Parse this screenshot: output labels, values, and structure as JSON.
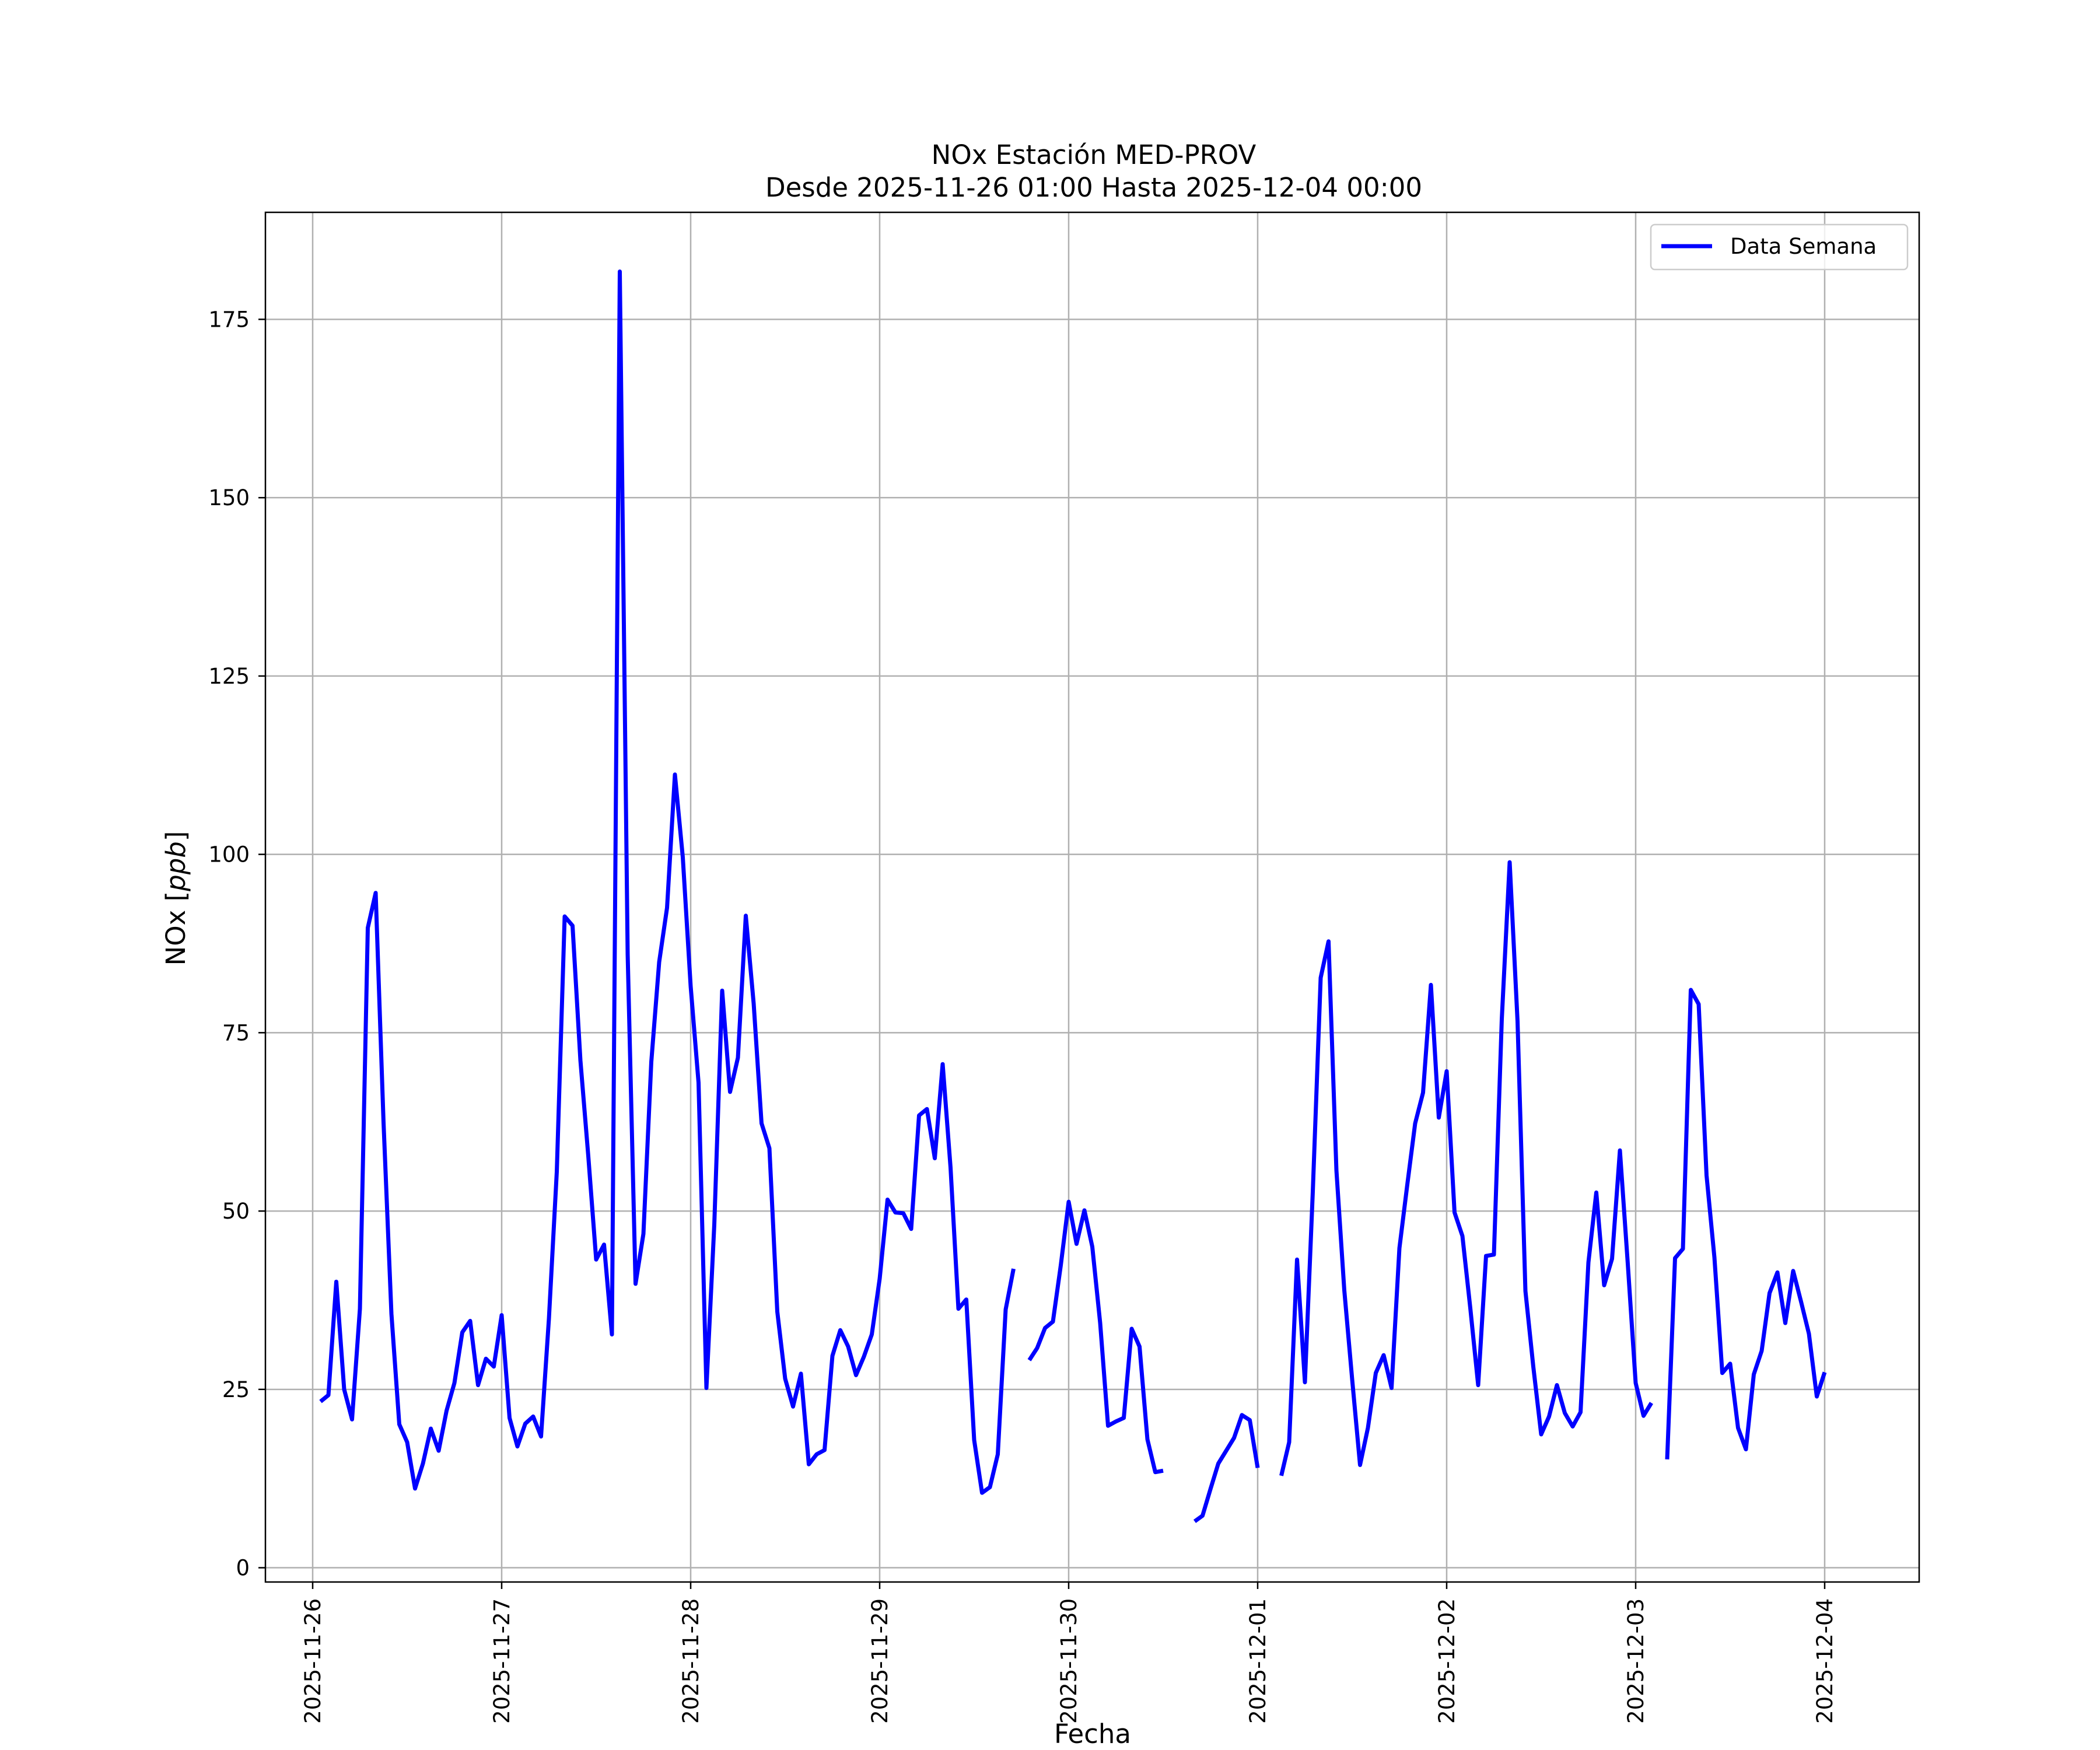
{
  "chart_data": {
    "type": "line",
    "title": "NOx Estación MED-PROV",
    "subtitle": "Desde 2025-11-26 01:00 Hasta 2025-12-04 00:00",
    "xlabel": "Fecha",
    "ylabel_text": "NOx [",
    "ylabel_unit": "ppb",
    "ylabel_close": "]",
    "ylim": [
      -2,
      190
    ],
    "xlim": [
      "2025-11-25T18:00",
      "2025-12-04T12:00"
    ],
    "x_ticks": [
      "2025-11-26",
      "2025-11-27",
      "2025-11-28",
      "2025-11-29",
      "2025-11-30",
      "2025-12-01",
      "2025-12-02",
      "2025-12-03",
      "2025-12-04"
    ],
    "y_ticks": [
      0,
      25,
      50,
      75,
      100,
      125,
      150,
      175
    ],
    "grid": true,
    "legend_position": "top-right",
    "line_color": "#0000ff",
    "series": [
      {
        "name": "Data Semana",
        "color": "#0000ff",
        "start": "2025-11-26T01:00",
        "step_hours": 1,
        "values": [
          23.3,
          24.2,
          40.1,
          25.0,
          20.8,
          36.3,
          89.7,
          94.6,
          62.4,
          35.6,
          20.1,
          17.6,
          11.1,
          14.6,
          19.5,
          16.4,
          22.0,
          25.9,
          33.0,
          34.6,
          25.6,
          29.3,
          28.2,
          35.4,
          21.0,
          17.0,
          20.2,
          21.2,
          18.4,
          34.9,
          55.5,
          91.3,
          90.0,
          71.1,
          57.7,
          43.2,
          45.3,
          32.7,
          181.7,
          86.0,
          39.8,
          46.8,
          70.9,
          84.9,
          92.5,
          111.2,
          99.6,
          81.5,
          68.0,
          25.2,
          48.1,
          80.9,
          66.7,
          71.5,
          91.4,
          79.1,
          62.3,
          58.8,
          35.9,
          26.5,
          22.6,
          27.2,
          14.5,
          15.9,
          16.5,
          29.7,
          33.3,
          31.0,
          27.0,
          29.6,
          32.7,
          40.5,
          51.6,
          49.8,
          49.7,
          47.5,
          63.4,
          64.3,
          57.4,
          70.6,
          56.1,
          36.3,
          37.6,
          17.9,
          10.5,
          11.3,
          15.9,
          36.2,
          41.9,
          null,
          29.1,
          30.8,
          33.6,
          34.5,
          42.4,
          51.3,
          45.4,
          50.1,
          45.0,
          34.3,
          19.9,
          20.5,
          21.0,
          33.5,
          31.0,
          18.0,
          13.4,
          13.6,
          null,
          null,
          null,
          6.5,
          7.3,
          11.0,
          14.6,
          16.4,
          18.2,
          21.4,
          20.7,
          14.0,
          null,
          null,
          12.9,
          17.6,
          43.2,
          26.0,
          52.7,
          82.7,
          87.8,
          55.7,
          38.9,
          26.4,
          14.4,
          19.6,
          27.3,
          29.8,
          25.2,
          44.8,
          53.7,
          62.3,
          66.6,
          81.7,
          63.1,
          69.6,
          49.8,
          46.5,
          36.4,
          25.6,
          43.7,
          43.9,
          76.9,
          98.9,
          76.6,
          38.8,
          28.2,
          18.7,
          21.2,
          25.6,
          21.7,
          19.8,
          21.8,
          42.8,
          52.6,
          39.6,
          43.3,
          58.5,
          42.6,
          25.9,
          21.3,
          23.1,
          null,
          15.2,
          43.4,
          44.7,
          81.0,
          79.0,
          55.0,
          43.5,
          27.3,
          28.6,
          19.6,
          16.6,
          27.1,
          30.4,
          38.5,
          41.4,
          34.3,
          41.6,
          37.3,
          32.8,
          24.0,
          27.4
        ]
      }
    ]
  }
}
